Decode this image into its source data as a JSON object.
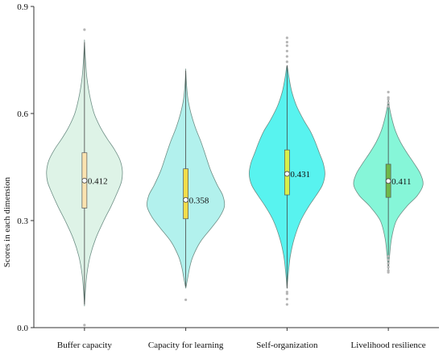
{
  "chart_data": {
    "type": "violin",
    "ylabel": "Scores in each dimension",
    "ylim": [
      0.0,
      0.9
    ],
    "yticks": [
      "0.0",
      "0.3",
      "0.6",
      "0.9"
    ],
    "grid": false,
    "categories": [
      "Buffer capacity",
      "Capacity for learning",
      "Self-organization",
      "Livelihood resilience"
    ],
    "series": [
      {
        "category": "Buffer capacity",
        "median_label": "0.412",
        "median": 0.412,
        "q1": 0.335,
        "q3": 0.49,
        "whisker_low": 0.065,
        "whisker_high": 0.8,
        "outliers": [
          0.007,
          0.835
        ],
        "violin_color": "#dcf2e6",
        "box_color": "#fbe3b0",
        "density": [
          [
            0.06,
            0.0
          ],
          [
            0.1,
            0.02
          ],
          [
            0.15,
            0.06
          ],
          [
            0.2,
            0.14
          ],
          [
            0.25,
            0.28
          ],
          [
            0.3,
            0.48
          ],
          [
            0.34,
            0.66
          ],
          [
            0.38,
            0.82
          ],
          [
            0.41,
            0.92
          ],
          [
            0.44,
            0.94
          ],
          [
            0.47,
            0.88
          ],
          [
            0.5,
            0.74
          ],
          [
            0.53,
            0.56
          ],
          [
            0.56,
            0.4
          ],
          [
            0.6,
            0.24
          ],
          [
            0.65,
            0.13
          ],
          [
            0.7,
            0.06
          ],
          [
            0.75,
            0.025
          ],
          [
            0.8,
            0.0
          ]
        ]
      },
      {
        "category": "Capacity for learning",
        "median_label": "0.358",
        "median": 0.358,
        "q1": 0.305,
        "q3": 0.445,
        "whisker_low": 0.115,
        "whisker_high": 0.72,
        "outliers": [
          0.078
        ],
        "violin_color": "#aef0ec",
        "box_color": "#f2dd4a",
        "density": [
          [
            0.11,
            0.0
          ],
          [
            0.14,
            0.05
          ],
          [
            0.17,
            0.1
          ],
          [
            0.2,
            0.18
          ],
          [
            0.24,
            0.36
          ],
          [
            0.28,
            0.64
          ],
          [
            0.31,
            0.84
          ],
          [
            0.34,
            0.96
          ],
          [
            0.37,
            0.92
          ],
          [
            0.4,
            0.78
          ],
          [
            0.44,
            0.62
          ],
          [
            0.48,
            0.5
          ],
          [
            0.52,
            0.38
          ],
          [
            0.56,
            0.24
          ],
          [
            0.6,
            0.13
          ],
          [
            0.64,
            0.055
          ],
          [
            0.68,
            0.02
          ],
          [
            0.72,
            0.0
          ]
        ]
      },
      {
        "category": "Self-organization",
        "median_label": "0.431",
        "median": 0.431,
        "q1": 0.372,
        "q3": 0.498,
        "whisker_low": 0.11,
        "whisker_high": 0.735,
        "outliers": [
          0.065,
          0.08,
          0.095,
          0.1,
          0.745,
          0.76,
          0.775,
          0.79,
          0.8,
          0.812
        ],
        "violin_color": "#4ff2ee",
        "box_color": "#d9ef4a",
        "density": [
          [
            0.11,
            0.0
          ],
          [
            0.15,
            0.03
          ],
          [
            0.2,
            0.08
          ],
          [
            0.25,
            0.18
          ],
          [
            0.3,
            0.34
          ],
          [
            0.34,
            0.54
          ],
          [
            0.37,
            0.72
          ],
          [
            0.4,
            0.88
          ],
          [
            0.43,
            0.94
          ],
          [
            0.46,
            0.9
          ],
          [
            0.49,
            0.8
          ],
          [
            0.52,
            0.7
          ],
          [
            0.55,
            0.58
          ],
          [
            0.58,
            0.42
          ],
          [
            0.62,
            0.24
          ],
          [
            0.66,
            0.12
          ],
          [
            0.7,
            0.05
          ],
          [
            0.73,
            0.01
          ]
        ]
      },
      {
        "category": "Livelihood resilience",
        "median_label": "0.411",
        "median": 0.411,
        "q1": 0.365,
        "q3": 0.458,
        "whisker_low": 0.165,
        "whisker_high": 0.635,
        "outliers": [
          0.155,
          0.16,
          0.17,
          0.18,
          0.19,
          0.2,
          0.62,
          0.63,
          0.64,
          0.645,
          0.66
        ],
        "violin_color": "#7ff5d6",
        "box_color": "#6fb84a",
        "density": [
          [
            0.16,
            0.0
          ],
          [
            0.2,
            0.03
          ],
          [
            0.25,
            0.08
          ],
          [
            0.3,
            0.2
          ],
          [
            0.34,
            0.46
          ],
          [
            0.37,
            0.72
          ],
          [
            0.4,
            0.86
          ],
          [
            0.43,
            0.8
          ],
          [
            0.46,
            0.64
          ],
          [
            0.49,
            0.46
          ],
          [
            0.52,
            0.3
          ],
          [
            0.55,
            0.18
          ],
          [
            0.58,
            0.1
          ],
          [
            0.61,
            0.04
          ],
          [
            0.64,
            0.0
          ]
        ]
      }
    ]
  }
}
